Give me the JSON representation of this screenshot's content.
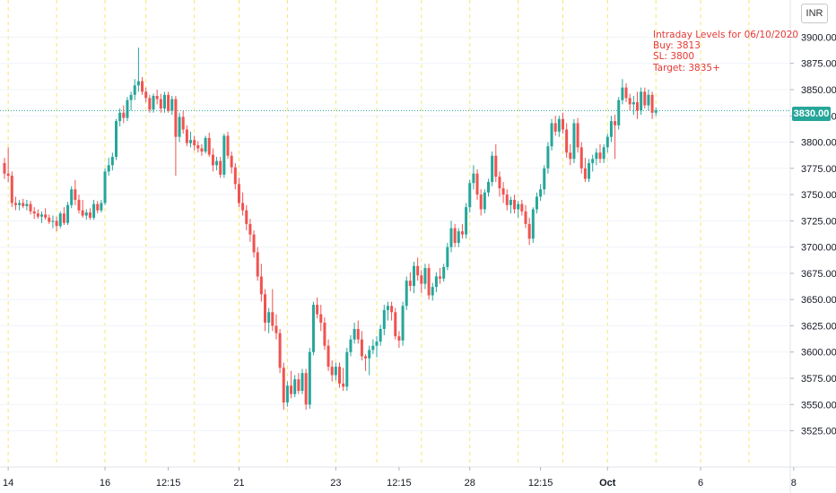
{
  "chart_data": {
    "type": "candlestick",
    "currency": "INR",
    "current_price": 3830,
    "current_price_label": "3830.00",
    "ylim": [
      3505,
      3920
    ],
    "y_ticks": [
      3525,
      3550,
      3575,
      3600,
      3625,
      3650,
      3675,
      3700,
      3725,
      3750,
      3775,
      3800,
      3825,
      3850,
      3875,
      3900
    ],
    "y_tick_labels": [
      "3525.00",
      "3550.00",
      "3575.00",
      "3600.00",
      "3625.00",
      "3650.00",
      "3675.00",
      "3700.00",
      "3725.00",
      "3750.00",
      "3775.00",
      "3800.00",
      "3825.00",
      "3850.00",
      "3875.00",
      "3900.00"
    ],
    "top_cut_label": "3",
    "x_ticks": [
      {
        "label": "14",
        "bar": 1
      },
      {
        "label": "16",
        "bar": 27
      },
      {
        "label": "12:15",
        "bar": 44
      },
      {
        "label": "21",
        "bar": 63
      },
      {
        "label": "23",
        "bar": 89
      },
      {
        "label": "12:15",
        "bar": 106
      },
      {
        "label": "28",
        "bar": 125
      },
      {
        "label": "12:15",
        "bar": 144
      },
      {
        "label": "Oct",
        "bar": 162,
        "bold": true
      },
      {
        "label": "6",
        "bar": 187
      },
      {
        "label": "8",
        "bar": 212
      }
    ],
    "session_lines": [
      1,
      14,
      27,
      38,
      51,
      63,
      76,
      89,
      100,
      112,
      125,
      138,
      150,
      162,
      175,
      187,
      200
    ],
    "grid": true,
    "candle_colors": {
      "up": "#26a69a",
      "down": "#ef5350"
    },
    "annotation": [
      "Intraday Levels for 06/10/2020",
      "Buy: 3813",
      "SL: 3800",
      "Target: 3835+"
    ],
    "candles": [
      [
        3780,
        3785,
        3765,
        3770
      ],
      [
        3770,
        3795,
        3762,
        3768
      ],
      [
        3768,
        3772,
        3738,
        3742
      ],
      [
        3742,
        3748,
        3735,
        3740
      ],
      [
        3740,
        3745,
        3735,
        3742
      ],
      [
        3742,
        3746,
        3737,
        3739
      ],
      [
        3739,
        3745,
        3735,
        3741
      ],
      [
        3741,
        3744,
        3731,
        3734
      ],
      [
        3734,
        3738,
        3727,
        3732
      ],
      [
        3732,
        3736,
        3727,
        3729
      ],
      [
        3729,
        3734,
        3723,
        3731
      ],
      [
        3731,
        3737,
        3726,
        3728
      ],
      [
        3728,
        3731,
        3722,
        3724
      ],
      [
        3724,
        3730,
        3718,
        3725
      ],
      [
        3725,
        3729,
        3715,
        3720
      ],
      [
        3720,
        3734,
        3718,
        3732
      ],
      [
        3732,
        3738,
        3721,
        3723
      ],
      [
        3723,
        3743,
        3721,
        3740
      ],
      [
        3740,
        3758,
        3737,
        3755
      ],
      [
        3755,
        3764,
        3740,
        3745
      ],
      [
        3745,
        3750,
        3732,
        3735
      ],
      [
        3735,
        3745,
        3728,
        3730
      ],
      [
        3730,
        3736,
        3726,
        3733
      ],
      [
        3733,
        3737,
        3726,
        3728
      ],
      [
        3728,
        3745,
        3726,
        3741
      ],
      [
        3741,
        3744,
        3732,
        3735
      ],
      [
        3735,
        3745,
        3733,
        3742
      ],
      [
        3742,
        3775,
        3740,
        3772
      ],
      [
        3772,
        3785,
        3768,
        3778
      ],
      [
        3778,
        3790,
        3773,
        3786
      ],
      [
        3786,
        3822,
        3783,
        3820
      ],
      [
        3820,
        3832,
        3815,
        3828
      ],
      [
        3828,
        3835,
        3818,
        3823
      ],
      [
        3823,
        3843,
        3820,
        3840
      ],
      [
        3840,
        3848,
        3830,
        3845
      ],
      [
        3845,
        3860,
        3840,
        3854
      ],
      [
        3854,
        3890,
        3848,
        3858
      ],
      [
        3858,
        3862,
        3845,
        3848
      ],
      [
        3848,
        3852,
        3838,
        3842
      ],
      [
        3842,
        3845,
        3828,
        3831
      ],
      [
        3831,
        3846,
        3828,
        3844
      ],
      [
        3844,
        3850,
        3836,
        3841
      ],
      [
        3841,
        3846,
        3828,
        3832
      ],
      [
        3832,
        3848,
        3828,
        3845
      ],
      [
        3845,
        3848,
        3828,
        3830
      ],
      [
        3830,
        3844,
        3826,
        3841
      ],
      [
        3841,
        3844,
        3768,
        3805
      ],
      [
        3805,
        3828,
        3800,
        3824
      ],
      [
        3824,
        3830,
        3808,
        3812
      ],
      [
        3812,
        3816,
        3796,
        3799
      ],
      [
        3799,
        3810,
        3795,
        3802
      ],
      [
        3802,
        3806,
        3792,
        3797
      ],
      [
        3797,
        3801,
        3790,
        3794
      ],
      [
        3794,
        3798,
        3787,
        3791
      ],
      [
        3791,
        3806,
        3789,
        3804
      ],
      [
        3804,
        3809,
        3786,
        3788
      ],
      [
        3788,
        3794,
        3772,
        3778
      ],
      [
        3778,
        3786,
        3773,
        3782
      ],
      [
        3782,
        3786,
        3766,
        3769
      ],
      [
        3769,
        3808,
        3766,
        3806
      ],
      [
        3806,
        3810,
        3784,
        3787
      ],
      [
        3787,
        3791,
        3770,
        3776
      ],
      [
        3776,
        3780,
        3755,
        3760
      ],
      [
        3760,
        3766,
        3738,
        3742
      ],
      [
        3742,
        3752,
        3730,
        3735
      ],
      [
        3735,
        3740,
        3716,
        3722
      ],
      [
        3722,
        3727,
        3705,
        3712
      ],
      [
        3712,
        3716,
        3690,
        3695
      ],
      [
        3695,
        3700,
        3668,
        3672
      ],
      [
        3672,
        3684,
        3648,
        3655
      ],
      [
        3655,
        3660,
        3620,
        3628
      ],
      [
        3628,
        3642,
        3618,
        3638
      ],
      [
        3638,
        3660,
        3620,
        3625
      ],
      [
        3625,
        3636,
        3612,
        3618
      ],
      [
        3618,
        3622,
        3580,
        3585
      ],
      [
        3585,
        3590,
        3545,
        3552
      ],
      [
        3552,
        3572,
        3548,
        3568
      ],
      [
        3568,
        3582,
        3556,
        3560
      ],
      [
        3560,
        3578,
        3557,
        3574
      ],
      [
        3574,
        3580,
        3560,
        3563
      ],
      [
        3563,
        3584,
        3560,
        3580
      ],
      [
        3580,
        3584,
        3545,
        3550
      ],
      [
        3550,
        3604,
        3546,
        3600
      ],
      [
        3600,
        3648,
        3597,
        3645
      ],
      [
        3645,
        3652,
        3632,
        3636
      ],
      [
        3636,
        3645,
        3620,
        3628
      ],
      [
        3628,
        3633,
        3602,
        3606
      ],
      [
        3606,
        3612,
        3582,
        3586
      ],
      [
        3586,
        3592,
        3572,
        3578
      ],
      [
        3578,
        3590,
        3573,
        3586
      ],
      [
        3586,
        3590,
        3566,
        3570
      ],
      [
        3570,
        3585,
        3563,
        3567
      ],
      [
        3567,
        3604,
        3563,
        3600
      ],
      [
        3600,
        3616,
        3596,
        3612
      ],
      [
        3612,
        3628,
        3608,
        3622
      ],
      [
        3622,
        3630,
        3608,
        3612
      ],
      [
        3612,
        3620,
        3592,
        3596
      ],
      [
        3596,
        3598,
        3582,
        3594
      ],
      [
        3594,
        3606,
        3578,
        3602
      ],
      [
        3602,
        3612,
        3598,
        3606
      ],
      [
        3606,
        3615,
        3595,
        3610
      ],
      [
        3610,
        3626,
        3606,
        3622
      ],
      [
        3622,
        3645,
        3616,
        3640
      ],
      [
        3640,
        3648,
        3630,
        3644
      ],
      [
        3644,
        3648,
        3630,
        3638
      ],
      [
        3638,
        3642,
        3612,
        3615
      ],
      [
        3615,
        3620,
        3604,
        3611
      ],
      [
        3611,
        3648,
        3606,
        3644
      ],
      [
        3644,
        3672,
        3640,
        3668
      ],
      [
        3668,
        3676,
        3658,
        3663
      ],
      [
        3663,
        3686,
        3656,
        3682
      ],
      [
        3682,
        3690,
        3668,
        3673
      ],
      [
        3673,
        3678,
        3656,
        3665
      ],
      [
        3665,
        3684,
        3660,
        3680
      ],
      [
        3680,
        3684,
        3650,
        3654
      ],
      [
        3654,
        3666,
        3649,
        3662
      ],
      [
        3662,
        3676,
        3657,
        3672
      ],
      [
        3672,
        3680,
        3665,
        3670
      ],
      [
        3670,
        3684,
        3667,
        3681
      ],
      [
        3681,
        3704,
        3678,
        3700
      ],
      [
        3700,
        3725,
        3695,
        3718
      ],
      [
        3718,
        3722,
        3700,
        3704
      ],
      [
        3704,
        3718,
        3700,
        3715
      ],
      [
        3715,
        3722,
        3708,
        3712
      ],
      [
        3712,
        3742,
        3708,
        3738
      ],
      [
        3738,
        3764,
        3733,
        3761
      ],
      [
        3761,
        3778,
        3755,
        3770
      ],
      [
        3770,
        3774,
        3745,
        3750
      ],
      [
        3750,
        3755,
        3730,
        3736
      ],
      [
        3736,
        3755,
        3732,
        3752
      ],
      [
        3752,
        3765,
        3748,
        3762
      ],
      [
        3762,
        3791,
        3758,
        3787
      ],
      [
        3787,
        3798,
        3762,
        3767
      ],
      [
        3767,
        3772,
        3748,
        3756
      ],
      [
        3756,
        3762,
        3742,
        3750
      ],
      [
        3750,
        3755,
        3735,
        3740
      ],
      [
        3740,
        3748,
        3732,
        3745
      ],
      [
        3745,
        3750,
        3732,
        3736
      ],
      [
        3736,
        3744,
        3728,
        3741
      ],
      [
        3741,
        3745,
        3730,
        3734
      ],
      [
        3734,
        3740,
        3718,
        3722
      ],
      [
        3722,
        3728,
        3702,
        3708
      ],
      [
        3708,
        3738,
        3704,
        3736
      ],
      [
        3736,
        3752,
        3732,
        3748
      ],
      [
        3748,
        3760,
        3744,
        3755
      ],
      [
        3755,
        3778,
        3750,
        3775
      ],
      [
        3775,
        3800,
        3770,
        3796
      ],
      [
        3796,
        3822,
        3792,
        3818
      ],
      [
        3818,
        3825,
        3806,
        3810
      ],
      [
        3810,
        3825,
        3805,
        3822
      ],
      [
        3822,
        3828,
        3808,
        3812
      ],
      [
        3812,
        3818,
        3785,
        3790
      ],
      [
        3790,
        3798,
        3778,
        3784
      ],
      [
        3784,
        3822,
        3780,
        3818
      ],
      [
        3818,
        3823,
        3790,
        3795
      ],
      [
        3795,
        3800,
        3770,
        3775
      ],
      [
        3775,
        3785,
        3762,
        3765
      ],
      [
        3765,
        3784,
        3762,
        3780
      ],
      [
        3780,
        3788,
        3772,
        3784
      ],
      [
        3784,
        3794,
        3778,
        3790
      ],
      [
        3790,
        3798,
        3780,
        3784
      ],
      [
        3784,
        3798,
        3780,
        3795
      ],
      [
        3795,
        3808,
        3790,
        3805
      ],
      [
        3805,
        3825,
        3800,
        3820
      ],
      [
        3820,
        3826,
        3784,
        3816
      ],
      [
        3816,
        3843,
        3812,
        3840
      ],
      [
        3840,
        3860,
        3836,
        3852
      ],
      [
        3852,
        3856,
        3838,
        3842
      ],
      [
        3842,
        3846,
        3830,
        3836
      ],
      [
        3836,
        3844,
        3826,
        3838
      ],
      [
        3838,
        3848,
        3822,
        3830
      ],
      [
        3830,
        3852,
        3826,
        3848
      ],
      [
        3848,
        3852,
        3832,
        3835
      ],
      [
        3835,
        3850,
        3830,
        3845
      ],
      [
        3845,
        3848,
        3822,
        3828
      ],
      [
        3828,
        3833,
        3825,
        3830
      ]
    ]
  }
}
